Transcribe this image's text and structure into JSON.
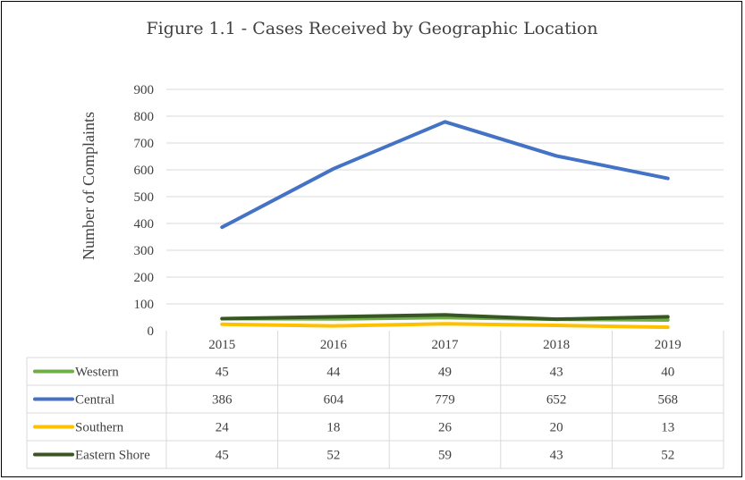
{
  "chart_data": {
    "type": "line",
    "title": "Figure 1.1 - Cases Received by Geographic Location",
    "ylabel": "Number of Complaints",
    "xlabel": "",
    "ylim": [
      0,
      900
    ],
    "yticks": [
      0,
      100,
      200,
      300,
      400,
      500,
      600,
      700,
      800,
      900
    ],
    "grid": true,
    "legend": "data-table",
    "categories": [
      "2015",
      "2016",
      "2017",
      "2018",
      "2019"
    ],
    "series": [
      {
        "name": "Western",
        "color": "#70ad47",
        "values": [
          45,
          44,
          49,
          43,
          40
        ]
      },
      {
        "name": "Central",
        "color": "#4472c4",
        "values": [
          386,
          604,
          779,
          652,
          568
        ]
      },
      {
        "name": "Southern",
        "color": "#ffc000",
        "values": [
          24,
          18,
          26,
          20,
          13
        ]
      },
      {
        "name": "Eastern Shore",
        "color": "#375623",
        "values": [
          45,
          52,
          59,
          43,
          52
        ]
      }
    ]
  }
}
